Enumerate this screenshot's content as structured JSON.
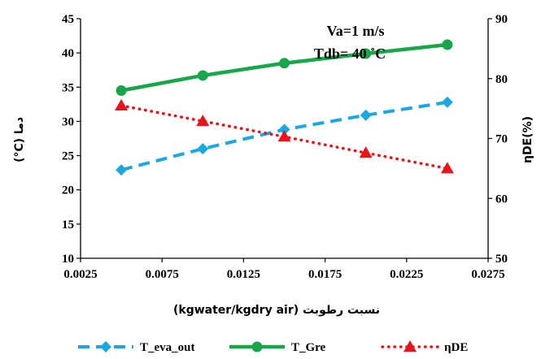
{
  "chart_data": {
    "type": "line",
    "xlabel": "نسبت رطوبت (kgwater/kgdry air)",
    "ylabel_left": "دما (C°)",
    "ylabel_right": "ηDE(%)",
    "xlim": [
      0.0025,
      0.0275
    ],
    "x_ticks": [
      "0.0025",
      "0.0075",
      "0.0125",
      "0.0175",
      "0.0225",
      "0.0275"
    ],
    "x_tick_values": [
      0.0025,
      0.0075,
      0.0125,
      0.0175,
      0.0225,
      0.0275
    ],
    "ylim_left": [
      10,
      45
    ],
    "y_left_ticks": [
      10,
      15,
      20,
      25,
      30,
      35,
      40,
      45
    ],
    "ylim_right": [
      50,
      90
    ],
    "y_right_ticks": [
      50,
      60,
      70,
      80,
      90
    ],
    "grid": false,
    "legend_position": "bottom",
    "annotations": [
      "Va=1 m/s",
      "Tdb= 40 ˚C"
    ],
    "series": [
      {
        "name": "T_eva_out",
        "axis": "left",
        "color": "#1ba7e0",
        "line_style": "dashed",
        "marker": "diamond",
        "x": [
          0.005,
          0.01,
          0.015,
          0.02,
          0.025
        ],
        "values": [
          22.9,
          26.0,
          28.8,
          30.9,
          32.8
        ]
      },
      {
        "name": "T_Gre",
        "axis": "left",
        "color": "#17a74a",
        "line_style": "solid",
        "marker": "circle",
        "x": [
          0.005,
          0.01,
          0.015,
          0.02,
          0.025
        ],
        "values": [
          34.5,
          36.7,
          38.5,
          39.9,
          41.2
        ]
      },
      {
        "name": "ηDE",
        "axis": "right",
        "color": "#e8141b",
        "line_style": "dotted",
        "marker": "triangle",
        "x": [
          0.005,
          0.01,
          0.015,
          0.02,
          0.025
        ],
        "values": [
          75.5,
          72.9,
          70.3,
          67.6,
          65.0
        ]
      }
    ]
  }
}
